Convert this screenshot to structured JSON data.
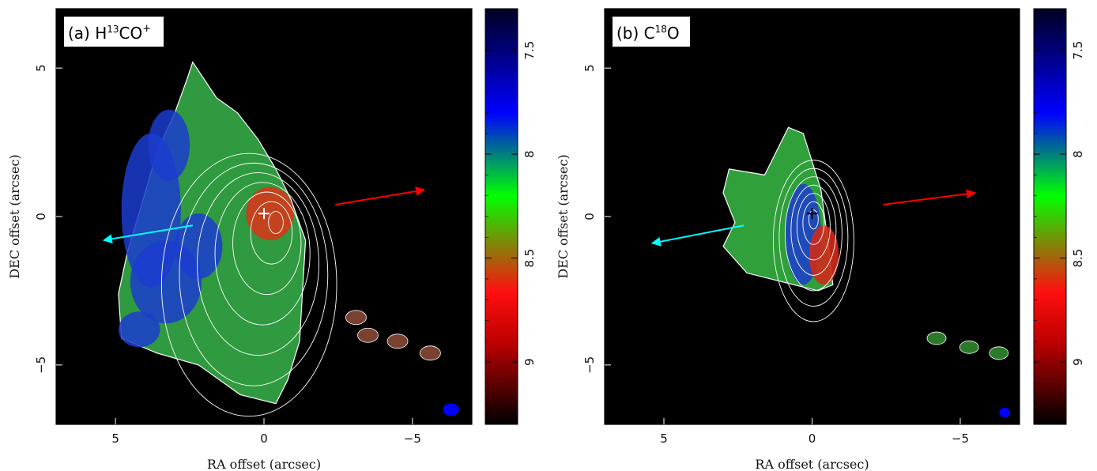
{
  "chart_data": [
    {
      "type": "heatmap",
      "panel_label": "(a) H",
      "panel_label_sup": "13",
      "panel_label_mid": "CO",
      "panel_label_sup2": "+",
      "xlabel": "RA offset (arcsec)",
      "ylabel": "DEC offset (arcsec)",
      "xlim": [
        7,
        -7
      ],
      "ylim": [
        -7,
        7
      ],
      "xticks": [
        "5",
        "0",
        "−5"
      ],
      "xtick_values": [
        5,
        0,
        -5
      ],
      "yticks": [
        "5",
        "0",
        "−5"
      ],
      "ytick_values": [
        5,
        0,
        -5
      ],
      "colorbar": {
        "range": [
          7.3,
          9.3
        ],
        "ticks": [
          "7.5",
          "8",
          "8.5",
          "9"
        ],
        "tick_values": [
          7.5,
          8.0,
          8.5,
          9.0
        ],
        "colormap": [
          "#000000",
          "#cc0000",
          "#ff0000",
          "#00ff00",
          "#0000ff",
          "#000033"
        ]
      },
      "peak_marker": {
        "x": 0.0,
        "y": 0.1
      },
      "arrows": [
        {
          "color": "#00ffff",
          "from": [
            2.4,
            -0.3
          ],
          "to": [
            5.4,
            -0.8
          ]
        },
        {
          "color": "#ff0000",
          "from": [
            -2.4,
            0.4
          ],
          "to": [
            -5.4,
            0.9
          ]
        }
      ],
      "beam": {
        "x": -6.3,
        "y": -6.5,
        "color": "#0000ff"
      }
    },
    {
      "type": "heatmap",
      "panel_label": "(b) C",
      "panel_label_sup": "18",
      "panel_label_mid": "O",
      "panel_label_sup2": "",
      "xlabel": "RA offset (arcsec)",
      "ylabel": "DEC offset (arcsec)",
      "xlim": [
        7,
        -7
      ],
      "ylim": [
        -7,
        7
      ],
      "xticks": [
        "5",
        "0",
        "−5"
      ],
      "xtick_values": [
        5,
        0,
        -5
      ],
      "yticks": [
        "5",
        "0",
        "−5"
      ],
      "ytick_values": [
        5,
        0,
        -5
      ],
      "colorbar": {
        "range": [
          7.3,
          9.3
        ],
        "ticks": [
          "7.5",
          "8",
          "8.5",
          "9"
        ],
        "tick_values": [
          7.5,
          8.0,
          8.5,
          9.0
        ],
        "colormap": [
          "#000000",
          "#cc0000",
          "#ff0000",
          "#00ff00",
          "#0000ff",
          "#000033"
        ]
      },
      "peak_marker": {
        "x": 0.0,
        "y": 0.1
      },
      "arrows": [
        {
          "color": "#00ffff",
          "from": [
            2.3,
            -0.3
          ],
          "to": [
            5.4,
            -0.9
          ]
        },
        {
          "color": "#ff0000",
          "from": [
            -2.4,
            0.4
          ],
          "to": [
            -5.5,
            0.8
          ]
        }
      ],
      "beam": {
        "x": -6.5,
        "y": -6.6,
        "color": "#0000ff"
      }
    }
  ]
}
